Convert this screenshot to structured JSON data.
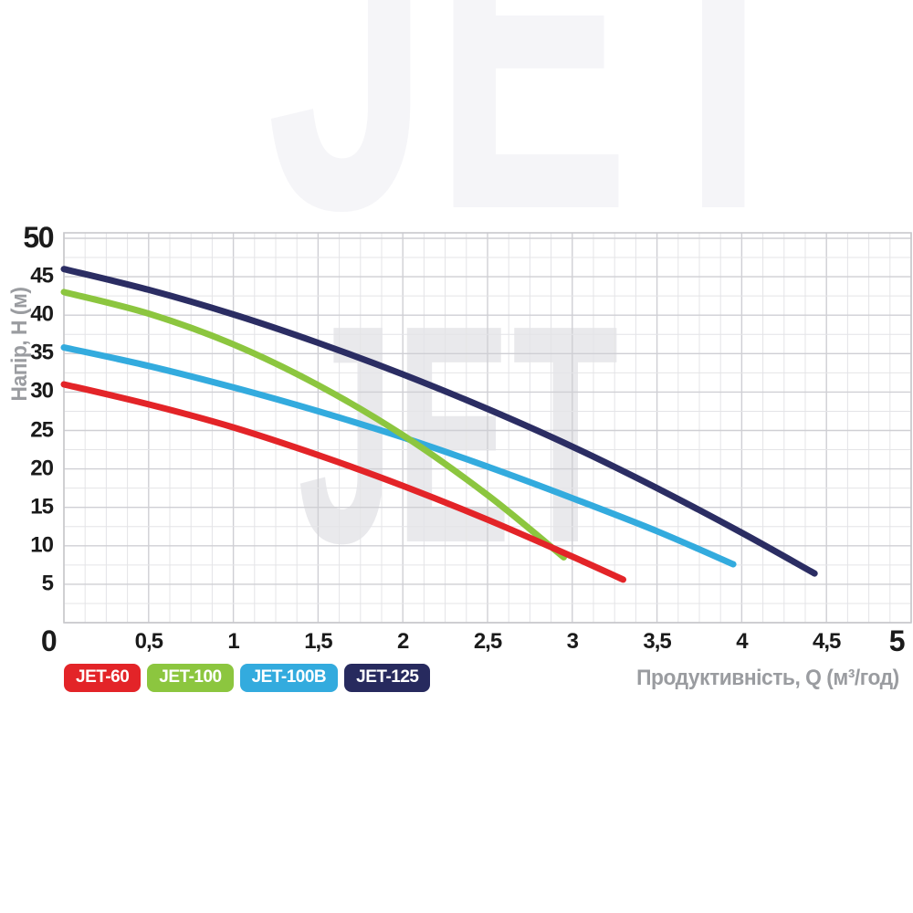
{
  "watermark": {
    "text": "JET"
  },
  "chart_data": {
    "type": "line",
    "title": "",
    "xlabel": "Продуктивність, Q (м³/год)",
    "ylabel": "Напір, H (м)",
    "xlim": [
      0,
      5
    ],
    "ylim": [
      0,
      51
    ],
    "grid": {
      "on": true,
      "x_minor_step": 0.125,
      "x_major_step": 0.5,
      "y_minor_step": 2.5,
      "y_major_step": 5
    },
    "origin_label": "0",
    "x_ticks": [
      {
        "v": 0.5,
        "label": "0,5"
      },
      {
        "v": 1,
        "label": "1"
      },
      {
        "v": 1.5,
        "label": "1,5"
      },
      {
        "v": 2,
        "label": "2"
      },
      {
        "v": 2.5,
        "label": "2,5"
      },
      {
        "v": 3,
        "label": "3"
      },
      {
        "v": 3.5,
        "label": "3,5"
      },
      {
        "v": 4,
        "label": "4"
      },
      {
        "v": 4.5,
        "label": "4,5"
      },
      {
        "v": 5,
        "label": "5",
        "big": true
      }
    ],
    "y_ticks": [
      {
        "v": 50,
        "label": "50",
        "big": true
      },
      {
        "v": 45,
        "label": "45"
      },
      {
        "v": 40,
        "label": "40"
      },
      {
        "v": 35,
        "label": "35"
      },
      {
        "v": 30,
        "label": "30"
      },
      {
        "v": 25,
        "label": "25"
      },
      {
        "v": 20,
        "label": "20"
      },
      {
        "v": 15,
        "label": "15"
      },
      {
        "v": 10,
        "label": "10"
      },
      {
        "v": 5,
        "label": "5"
      }
    ],
    "series": [
      {
        "name": "JET-60",
        "color": "#e32428",
        "points": [
          [
            0,
            31
          ],
          [
            0.5,
            28.4
          ],
          [
            1,
            25.4
          ],
          [
            1.5,
            21.8
          ],
          [
            2,
            17.8
          ],
          [
            2.5,
            13.4
          ],
          [
            3,
            8.6
          ],
          [
            3.3,
            5.6
          ]
        ]
      },
      {
        "name": "JET-100",
        "color": "#8cc63f",
        "points": [
          [
            0,
            43
          ],
          [
            0.5,
            40.2
          ],
          [
            1,
            36.2
          ],
          [
            1.5,
            30.9
          ],
          [
            2,
            24.4
          ],
          [
            2.5,
            16.6
          ],
          [
            2.95,
            8.5
          ]
        ]
      },
      {
        "name": "JET-100B",
        "color": "#33abde",
        "points": [
          [
            0,
            35.8
          ],
          [
            0.5,
            33.4
          ],
          [
            1,
            30.6
          ],
          [
            1.5,
            27.5
          ],
          [
            2,
            24.1
          ],
          [
            2.5,
            20.3
          ],
          [
            3,
            16.2
          ],
          [
            3.5,
            11.9
          ],
          [
            3.95,
            7.6
          ]
        ]
      },
      {
        "name": "JET-125",
        "color": "#2b2d63",
        "points": [
          [
            0,
            46
          ],
          [
            0.5,
            43.3
          ],
          [
            1,
            40.1
          ],
          [
            1.5,
            36.4
          ],
          [
            2,
            32.3
          ],
          [
            2.5,
            27.8
          ],
          [
            3,
            22.9
          ],
          [
            3.5,
            17.5
          ],
          [
            4,
            11.7
          ],
          [
            4.43,
            6.4
          ]
        ]
      }
    ],
    "draw_order": [
      "JET-100B",
      "JET-100",
      "JET-60",
      "JET-125"
    ],
    "legend": {
      "position": "bottom-left",
      "items": [
        {
          "label": "JET-60",
          "color": "#e32428"
        },
        {
          "label": "JET-100",
          "color": "#8cc63f"
        },
        {
          "label": "JET-100B",
          "color": "#33abde"
        },
        {
          "label": "JET-125",
          "color": "#272a5e"
        }
      ]
    }
  },
  "colors": {
    "grid_minor": "#e4e4e7",
    "grid_major": "#cfcfd4",
    "grid_border": "#c8c8cc",
    "tick_text": "#1b1b1b",
    "axis_title_text": "#9a9ca0",
    "watermark_main": "#e9e9ec",
    "watermark_top": "#f5f5f8"
  }
}
